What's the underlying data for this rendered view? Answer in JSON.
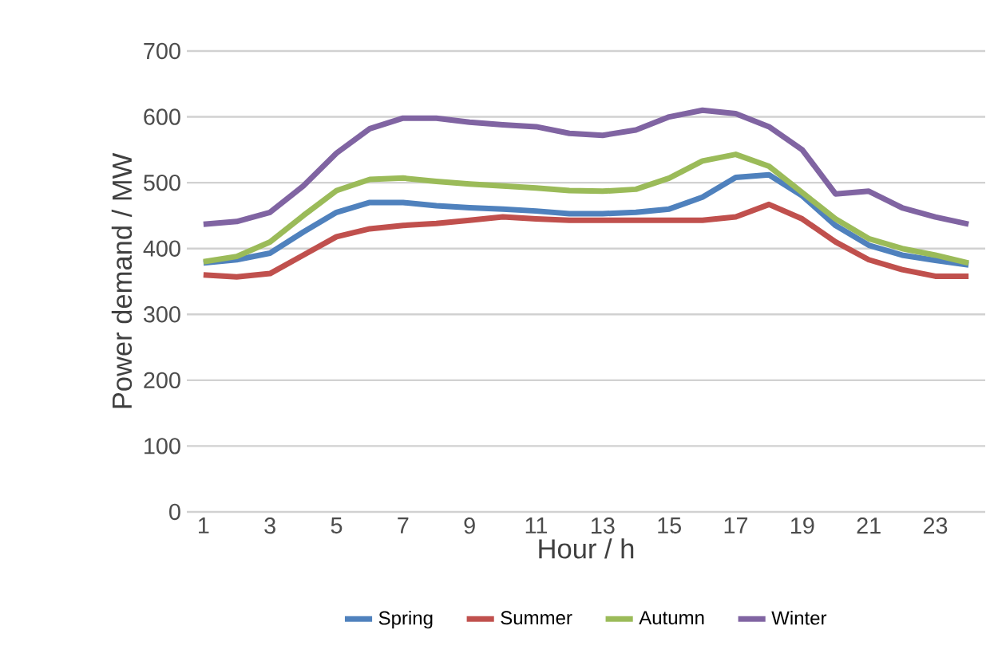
{
  "chart_data": {
    "type": "line",
    "xlabel": "Hour / h",
    "ylabel": "Power demand / MW",
    "categories": [
      "1",
      null,
      "3",
      null,
      "5",
      null,
      "7",
      null,
      "9",
      null,
      "11",
      null,
      "13",
      null,
      "15",
      null,
      "17",
      null,
      "19",
      null,
      "21",
      null,
      "23",
      null
    ],
    "series": [
      {
        "name": "Spring",
        "color": "#4f81bd",
        "values": [
          378,
          383,
          393,
          425,
          455,
          470,
          470,
          465,
          462,
          460,
          457,
          453,
          453,
          455,
          460,
          478,
          508,
          512,
          480,
          435,
          405,
          390,
          382,
          375
        ]
      },
      {
        "name": "Summer",
        "color": "#c0504d",
        "values": [
          360,
          357,
          362,
          390,
          418,
          430,
          435,
          438,
          443,
          448,
          445,
          443,
          443,
          443,
          443,
          443,
          448,
          467,
          445,
          410,
          383,
          368,
          358,
          358
        ]
      },
      {
        "name": "Autumn",
        "color": "#9bbb59",
        "values": [
          380,
          388,
          410,
          450,
          488,
          505,
          507,
          502,
          498,
          495,
          492,
          488,
          487,
          490,
          507,
          533,
          543,
          525,
          485,
          445,
          415,
          400,
          390,
          378
        ]
      },
      {
        "name": "Winter",
        "color": "#8064a2",
        "values": [
          437,
          441,
          455,
          495,
          545,
          582,
          598,
          598,
          592,
          588,
          585,
          575,
          572,
          580,
          600,
          610,
          605,
          585,
          550,
          483,
          487,
          462,
          448,
          437
        ]
      }
    ],
    "ylim": [
      0,
      700
    ],
    "yticks": [
      0,
      100,
      200,
      300,
      400,
      500,
      600,
      700
    ],
    "grid": "y",
    "legend": "bottom",
    "marker": "none",
    "line_style": "solid"
  }
}
